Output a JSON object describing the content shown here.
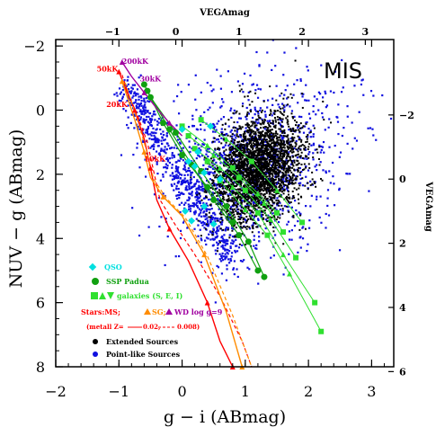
{
  "chart_data": {
    "type": "scatter",
    "title": "",
    "panel_label": "MIS",
    "xlabel": "g − i (ABmag)",
    "ylabel": "NUV − g (ABmag)",
    "top_axis_label": "VEGAmag",
    "right_axis_label": "VEGAmag",
    "xlim": [
      -2,
      3.35
    ],
    "ylim": [
      8,
      -2.2
    ],
    "x_ticks": [
      "−2",
      "−1",
      "0",
      "1",
      "2",
      "3"
    ],
    "y_ticks": [
      "−2",
      "0",
      "2",
      "4",
      "6",
      "8"
    ],
    "top_ticks": [
      "−1",
      "0",
      "1",
      "2",
      "3"
    ],
    "right_ticks": [
      "−2",
      "0",
      "2",
      "4",
      "6"
    ],
    "grid": false,
    "colors": {
      "extended": "#000000",
      "pointlike": "#1010e0",
      "qso": "#00e0e0",
      "ssp": "#10a010",
      "galaxy": "#30e030",
      "stars_ms": "#ff0000",
      "stars_sg": "#ff8c00",
      "stars_wd": "#a000a0"
    },
    "legend": {
      "placement": "bottom-left",
      "qso": "QSO",
      "ssp": "SSP Padua",
      "galaxies": "galaxies (S, E, I)",
      "stars_prefix": "Stars:MS;",
      "stars_sg": "SG;",
      "stars_wd": "WD log g=9",
      "metal_prefix": "(metall Z=",
      "metal_a": "0.02,",
      "metal_b": "0.008)",
      "extended": "Extended Sources",
      "pointlike": "Point-like Sources"
    },
    "temperature_labels": [
      {
        "text": "200kK",
        "x": -0.95,
        "y": -1.45,
        "color": "#a000a0"
      },
      {
        "text": "50kK",
        "x": -1.35,
        "y": -1.2,
        "color": "#ff0000"
      },
      {
        "text": "30kK",
        "x": -0.67,
        "y": -0.9,
        "color": "#a000a0"
      },
      {
        "text": "20kK",
        "x": -1.2,
        "y": -0.1,
        "color": "#ff0000"
      },
      {
        "text": "10kK",
        "x": -0.6,
        "y": 1.6,
        "color": "#ff0000"
      }
    ],
    "extended_cloud": {
      "center": [
        1.1,
        1.9
      ],
      "spread": [
        0.45,
        1.05
      ],
      "count": 2600
    },
    "pointlike_cloud": {
      "spread": [
        0.6,
        1.2
      ],
      "count": 1800
    },
    "qso": [
      {
        "x": 0.1,
        "y": 1.6
      },
      {
        "x": 0.2,
        "y": 1.75
      },
      {
        "x": 0.05,
        "y": 3.15
      },
      {
        "x": 0.15,
        "y": 3.45
      },
      {
        "x": 0.35,
        "y": 3.0
      },
      {
        "x": 0.5,
        "y": 3.55
      },
      {
        "x": 0.35,
        "y": 1.95
      },
      {
        "x": 0.6,
        "y": 2.15
      },
      {
        "x": 0.25,
        "y": 1.3
      },
      {
        "x": 0.45,
        "y": 0.5
      },
      {
        "x": 0.0,
        "y": 0.6
      }
    ],
    "ssp_tracks": [
      {
        "x": [
          -0.6,
          -0.3,
          0.0,
          0.4,
          0.8
        ],
        "y": [
          -0.8,
          0.4,
          1.4,
          2.4,
          3.5
        ]
      },
      {
        "x": [
          -0.55,
          -0.2,
          0.15,
          0.5,
          0.9,
          1.2
        ],
        "y": [
          -0.6,
          0.6,
          1.7,
          2.8,
          3.9,
          5.0
        ]
      },
      {
        "x": [
          -0.5,
          -0.1,
          0.3,
          0.7,
          1.05,
          1.3
        ],
        "y": [
          -0.4,
          0.7,
          1.9,
          3.0,
          4.1,
          5.2
        ]
      }
    ],
    "galaxy_tracks": [
      {
        "x": [
          0.2,
          0.6,
          1.0,
          1.4,
          1.8
        ],
        "y": [
          1.2,
          1.8,
          2.5,
          3.4,
          4.6
        ]
      },
      {
        "x": [
          0.4,
          0.8,
          1.2,
          1.6,
          2.1
        ],
        "y": [
          1.6,
          2.4,
          3.2,
          4.5,
          6.0
        ]
      },
      {
        "x": [
          0.6,
          1.0,
          1.35,
          1.7,
          2.2
        ],
        "y": [
          2.2,
          3.1,
          3.9,
          5.1,
          6.9
        ]
      },
      {
        "x": [
          0.1,
          0.5,
          0.9,
          1.3,
          1.6
        ],
        "y": [
          0.8,
          1.4,
          2.1,
          2.9,
          3.8
        ]
      },
      {
        "x": [
          0.3,
          0.7,
          1.1,
          1.5,
          1.9
        ],
        "y": [
          0.3,
          0.9,
          1.6,
          2.5,
          3.5
        ]
      },
      {
        "x": [
          0.0,
          0.4,
          0.8,
          1.2,
          1.5
        ],
        "y": [
          0.5,
          1.1,
          1.8,
          2.6,
          3.2
        ]
      }
    ],
    "ms_track_solid": {
      "x": [
        -1.0,
        -0.9,
        -0.75,
        -0.6,
        -0.5,
        -0.4,
        -0.2,
        0.1,
        0.4,
        0.6,
        0.8
      ],
      "y": [
        -1.2,
        -0.7,
        0.0,
        0.9,
        1.8,
        2.8,
        3.7,
        4.7,
        6.0,
        7.2,
        8.0
      ]
    },
    "ms_track_dashed": {
      "x": [
        -0.95,
        -0.85,
        -0.7,
        -0.55,
        -0.45,
        -0.35,
        -0.1,
        0.2,
        0.6,
        0.95,
        1.1
      ],
      "y": [
        -1.1,
        -0.5,
        0.2,
        1.0,
        1.9,
        2.8,
        3.6,
        4.5,
        5.8,
        7.2,
        8.0
      ]
    },
    "sg_track": {
      "x": [
        -0.95,
        -0.75,
        -0.6,
        -0.5,
        -0.3,
        0.0,
        0.35,
        0.7,
        0.95
      ],
      "y": [
        -0.9,
        0.3,
        1.3,
        2.1,
        2.7,
        3.3,
        4.5,
        6.3,
        8.0
      ]
    },
    "sg_track_dashed": {
      "x": [
        -0.9,
        -0.7,
        -0.55,
        -0.45,
        -0.25,
        0.05,
        0.4,
        0.8,
        1.1
      ],
      "y": [
        -0.85,
        0.35,
        1.35,
        2.15,
        2.75,
        3.35,
        4.55,
        6.4,
        8.0
      ]
    },
    "wd_track": {
      "x": [
        -0.95,
        -0.8,
        -0.6,
        -0.4,
        -0.2,
        0.0
      ],
      "y": [
        -1.5,
        -1.05,
        -0.55,
        -0.05,
        0.4,
        0.8
      ]
    }
  }
}
